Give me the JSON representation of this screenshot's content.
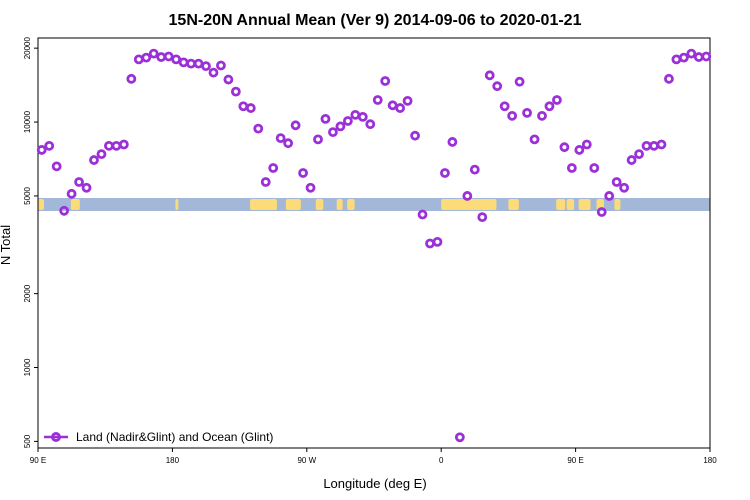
{
  "chart_data": {
    "type": "scatter",
    "title": "15N-20N Annual Mean (Ver 9)   2014-09-06 to 2020-01-21",
    "xlabel": "Longitude (deg E)",
    "ylabel": "N Total",
    "x_range_deg_from_90E": [
      0,
      360
    ],
    "x_ticks": [
      {
        "value": 0,
        "label": "90 E"
      },
      {
        "value": 90,
        "label": "180"
      },
      {
        "value": 180,
        "label": "90 W"
      },
      {
        "value": 270,
        "label": "0"
      },
      {
        "value": 360,
        "label": "90 E"
      },
      {
        "value": 450,
        "label": "180"
      }
    ],
    "x_ticks_note": "x values are longitude measured eastward from 90 E",
    "x_plot_range": [
      0,
      450
    ],
    "y_scale": "log",
    "ylim": [
      470,
      22000
    ],
    "y_ticks": [
      {
        "value": 500,
        "label": "500"
      },
      {
        "value": 1000,
        "label": "1000"
      },
      {
        "value": 2000,
        "label": "2000"
      },
      {
        "value": 5000,
        "label": "5000"
      },
      {
        "value": 10000,
        "label": "10000"
      },
      {
        "value": 20000,
        "label": "20000"
      }
    ],
    "legend": {
      "position": "bottom-left"
    },
    "series": [
      {
        "name": "Land (Nadir&Glint) and Ocean (Glint)",
        "color": "#9b30d9",
        "marker": "open-circle",
        "points": [
          [
            2.5,
            7700
          ],
          [
            7.5,
            8000
          ],
          [
            12.5,
            6600
          ],
          [
            17.5,
            4350
          ],
          [
            22.5,
            5100
          ],
          [
            27.5,
            5700
          ],
          [
            32.5,
            5400
          ],
          [
            37.5,
            7000
          ],
          [
            42.5,
            7400
          ],
          [
            47.5,
            8000
          ],
          [
            52.5,
            8000
          ],
          [
            57.5,
            8100
          ],
          [
            62.5,
            15000
          ],
          [
            67.5,
            18000
          ],
          [
            72.5,
            18300
          ],
          [
            77.5,
            19000
          ],
          [
            82.5,
            18400
          ],
          [
            87.5,
            18500
          ],
          [
            92.5,
            18000
          ],
          [
            97.5,
            17500
          ],
          [
            102.5,
            17300
          ],
          [
            107.5,
            17300
          ],
          [
            112.5,
            16900
          ],
          [
            117.5,
            15900
          ],
          [
            122.5,
            17000
          ],
          [
            127.5,
            14900
          ],
          [
            132.5,
            13300
          ],
          [
            137.5,
            11600
          ],
          [
            142.5,
            11400
          ],
          [
            147.5,
            9400
          ],
          [
            152.5,
            5700
          ],
          [
            157.5,
            6500
          ],
          [
            162.5,
            8600
          ],
          [
            167.5,
            8200
          ],
          [
            172.5,
            9700
          ],
          [
            177.5,
            6200
          ],
          [
            182.5,
            5400
          ],
          [
            187.5,
            8500
          ],
          [
            192.5,
            10300
          ],
          [
            197.5,
            9100
          ],
          [
            202.5,
            9600
          ],
          [
            207.5,
            10100
          ],
          [
            212.5,
            10700
          ],
          [
            217.5,
            10500
          ],
          [
            222.5,
            9800
          ],
          [
            227.5,
            12300
          ],
          [
            232.5,
            14700
          ],
          [
            237.5,
            11700
          ],
          [
            242.5,
            11400
          ],
          [
            247.5,
            12200
          ],
          [
            252.5,
            8800
          ],
          [
            257.5,
            4200
          ],
          [
            262.5,
            3200
          ],
          [
            267.5,
            3250
          ],
          [
            272.5,
            6200
          ],
          [
            277.5,
            8300
          ],
          [
            282.5,
            520
          ],
          [
            287.5,
            5000
          ],
          [
            292.5,
            6400
          ],
          [
            297.5,
            4100
          ],
          [
            302.5,
            15500
          ],
          [
            307.5,
            14000
          ],
          [
            312.5,
            11600
          ],
          [
            317.5,
            10600
          ],
          [
            322.5,
            14600
          ],
          [
            327.5,
            10900
          ],
          [
            332.5,
            8500
          ],
          [
            337.5,
            10600
          ],
          [
            342.5,
            11600
          ],
          [
            347.5,
            12300
          ],
          [
            352.5,
            7900
          ],
          [
            357.5,
            6500
          ],
          [
            362.5,
            7700
          ],
          [
            367.5,
            8100
          ],
          [
            372.5,
            6500
          ],
          [
            377.5,
            4300
          ],
          [
            382.5,
            5000
          ],
          [
            387.5,
            5700
          ],
          [
            392.5,
            5400
          ],
          [
            397.5,
            7000
          ],
          [
            402.5,
            7400
          ],
          [
            407.5,
            8000
          ],
          [
            412.5,
            8000
          ],
          [
            417.5,
            8100
          ],
          [
            422.5,
            15000
          ],
          [
            427.5,
            18000
          ],
          [
            432.5,
            18300
          ],
          [
            437.5,
            19000
          ],
          [
            442.5,
            18400
          ],
          [
            447.5,
            18500
          ]
        ]
      }
    ]
  },
  "colors": {
    "ocean": "#a3b8d9",
    "land": "#fddb78",
    "marker": "#9b30d9",
    "axis": "#000000"
  }
}
